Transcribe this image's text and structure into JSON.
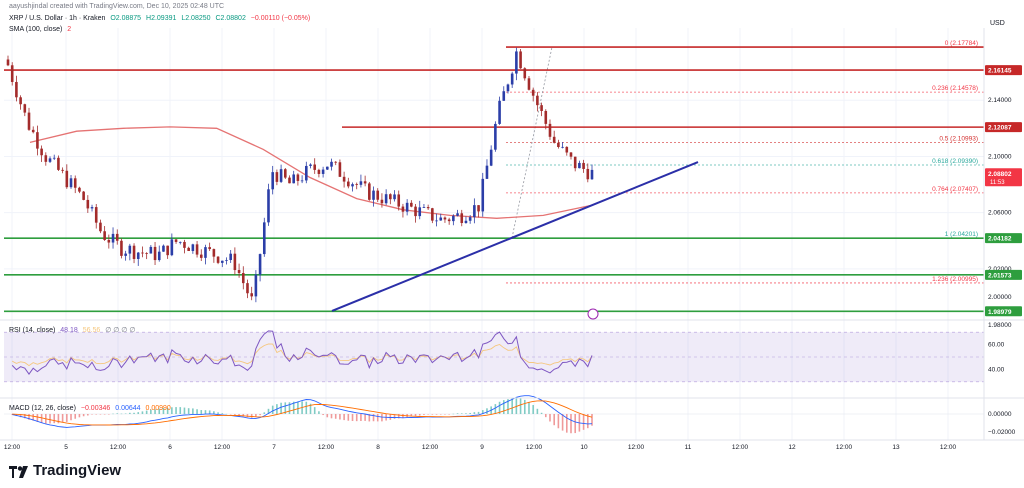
{
  "header": {
    "credit": "aayushjindal created with TradingView.com, Dec 10, 2025 02:48 UTC",
    "symbol": "XRP / U.S. Dollar · 1h · Kraken",
    "open": "O2.08875",
    "high": "H2.09391",
    "low": "L2.08250",
    "close": "C2.08802",
    "change": "−0.00110 (−0.05%)",
    "sma_label": "SMA (100, close)",
    "sma_value": "2"
  },
  "currency": "USD",
  "rsi_legend": {
    "label": "RSI (14, close)",
    "value": "48.18",
    "value2": "56.56",
    "extras": "∅ ∅ ∅ ∅"
  },
  "macd_legend": {
    "label": "MACD (12, 26, close)",
    "hist": "−0.00346",
    "macd": "0.00644",
    "signal": "0.00990"
  },
  "brand": "TradingView",
  "colors": {
    "up": "#089981",
    "down": "#f23645",
    "trendline": "#2b2fa8",
    "resistance": "#c62828",
    "support": "#2e9e3e",
    "sma": "#e57373",
    "rsi": "#7e57c2",
    "macd": "#2962ff",
    "signal": "#ff6d00"
  },
  "chart_data": {
    "type": "candlestick",
    "ylim": [
      1.985,
      2.19
    ],
    "time_labels": [
      "12:00",
      "5",
      "12:00",
      "6",
      "12:00",
      "7",
      "12:00",
      "8",
      "12:00",
      "9",
      "12:00",
      "10",
      "12:00",
      "11",
      "12:00",
      "12",
      "12:00",
      "13",
      "12:00"
    ],
    "candles_count": 140,
    "candle_closes_anchor": [
      2.165,
      2.125,
      2.1,
      2.085,
      2.07,
      2.045,
      2.035,
      2.032,
      2.03,
      2.04,
      2.035,
      2.03,
      2.025,
      1.995,
      2.09,
      2.08,
      2.09,
      2.095,
      2.085,
      2.075,
      2.07,
      2.065,
      2.06,
      2.055,
      2.058,
      2.065,
      2.13,
      2.175,
      2.14,
      2.11,
      2.095,
      2.088
    ],
    "sma_anchor": [
      2.11,
      2.118,
      2.12,
      2.121,
      2.12,
      2.105,
      2.085,
      2.07,
      2.062,
      2.058,
      2.056,
      2.058,
      2.065
    ],
    "horizontal_levels": [
      {
        "value": 2.16145,
        "label": "2.16145",
        "color": "#c62828"
      },
      {
        "value": 2.12087,
        "label": "2.12087",
        "color": "#c62828"
      },
      {
        "value": 2.04182,
        "label": "2.04182",
        "color": "#2e9e3e"
      },
      {
        "value": 2.01573,
        "label": "2.01573",
        "color": "#2e9e3e"
      },
      {
        "value": 1.98979,
        "label": "1.98979",
        "color": "#2e9e3e"
      }
    ],
    "price_tag": {
      "value": 2.08802,
      "label": "2.08802",
      "countdown": "11:53"
    },
    "fib_levels": [
      {
        "ratio": "0",
        "value": 2.17784
      },
      {
        "ratio": "0.236",
        "value": 2.14578
      },
      {
        "ratio": "0.5",
        "value": 2.10993
      },
      {
        "ratio": "0.618",
        "value": 2.0939
      },
      {
        "ratio": "0.764",
        "value": 2.07407
      },
      {
        "ratio": "1",
        "value": 2.04201
      },
      {
        "ratio": "1.236",
        "value": 2.00995
      }
    ],
    "price_ticks": [
      "2.14000",
      "2.10000",
      "2.06000",
      "2.02000",
      "2.00000",
      "1.98000"
    ],
    "trendline": {
      "from": {
        "x": 332,
        "y": 1.99
      },
      "to": {
        "x": 698,
        "y": 2.096
      }
    },
    "rsi": {
      "ylim": [
        25,
        75
      ],
      "band": [
        30,
        70
      ],
      "ticks": [
        "60.00",
        "40.00"
      ]
    },
    "macd": {
      "ticks": [
        "0.00000",
        "−0.02000"
      ]
    }
  }
}
